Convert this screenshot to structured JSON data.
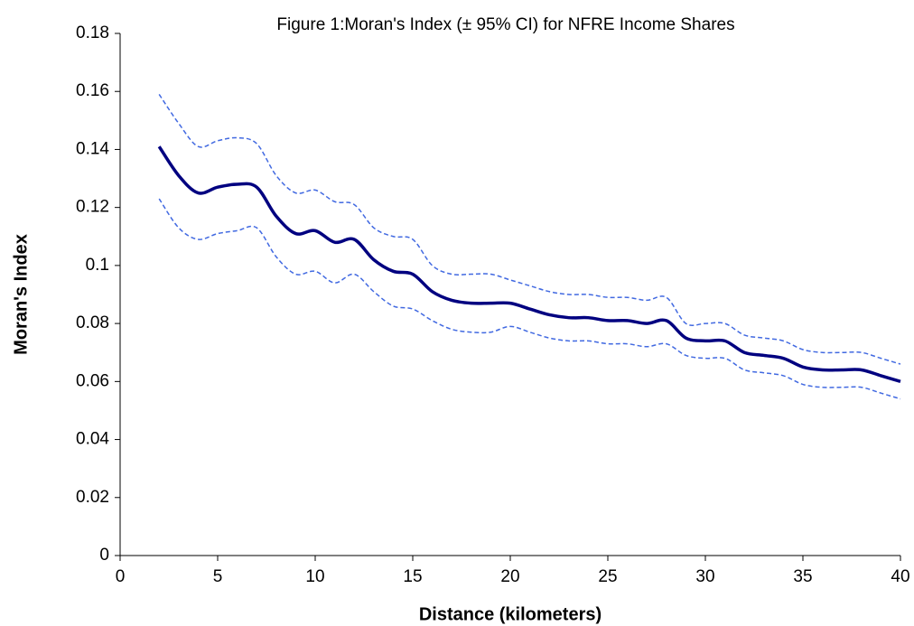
{
  "chart_data": {
    "type": "line",
    "title": "Figure 1:Moran's Index (± 95% CI) for NFRE Income Shares",
    "x_label": "Distance (kilometers)",
    "y_label": "Moran's Index",
    "x": [
      2,
      3,
      4,
      5,
      6,
      7,
      8,
      9,
      10,
      11,
      12,
      13,
      14,
      15,
      16,
      17,
      18,
      19,
      20,
      21,
      22,
      23,
      24,
      25,
      26,
      27,
      28,
      29,
      30,
      31,
      32,
      33,
      34,
      35,
      36,
      37,
      38,
      39,
      40
    ],
    "series": [
      {
        "color": "#000080",
        "dash": false,
        "width": 3.5,
        "values": [
          0.141,
          0.131,
          0.125,
          0.127,
          0.128,
          0.127,
          0.117,
          0.111,
          0.112,
          0.108,
          0.109,
          0.102,
          0.098,
          0.097,
          0.091,
          0.088,
          0.087,
          0.087,
          0.087,
          0.085,
          0.083,
          0.082,
          0.082,
          0.081,
          0.081,
          0.08,
          0.081,
          0.075,
          0.074,
          0.074,
          0.07,
          0.069,
          0.068,
          0.065,
          0.064,
          0.064,
          0.064,
          0.062,
          0.06
        ]
      },
      {
        "color": "#4169e1",
        "dash": true,
        "width": 1.5,
        "values": [
          0.159,
          0.149,
          0.141,
          0.143,
          0.144,
          0.142,
          0.131,
          0.125,
          0.126,
          0.122,
          0.121,
          0.113,
          0.11,
          0.109,
          0.1,
          0.097,
          0.097,
          0.097,
          0.095,
          0.093,
          0.091,
          0.09,
          0.09,
          0.089,
          0.089,
          0.088,
          0.089,
          0.08,
          0.08,
          0.08,
          0.076,
          0.075,
          0.074,
          0.071,
          0.07,
          0.07,
          0.07,
          0.068,
          0.066
        ]
      },
      {
        "color": "#4169e1",
        "dash": true,
        "width": 1.5,
        "values": [
          0.123,
          0.113,
          0.109,
          0.111,
          0.112,
          0.113,
          0.103,
          0.097,
          0.098,
          0.094,
          0.097,
          0.091,
          0.086,
          0.085,
          0.081,
          0.078,
          0.077,
          0.077,
          0.079,
          0.077,
          0.075,
          0.074,
          0.074,
          0.073,
          0.073,
          0.072,
          0.073,
          0.069,
          0.068,
          0.068,
          0.064,
          0.063,
          0.062,
          0.059,
          0.058,
          0.058,
          0.058,
          0.056,
          0.054
        ]
      }
    ],
    "xlim": [
      0,
      40
    ],
    "xticks": [
      0,
      5,
      10,
      15,
      20,
      25,
      30,
      35,
      40
    ],
    "ylim": [
      0,
      0.18
    ],
    "yticks": [
      0,
      0.02,
      0.04,
      0.06,
      0.08,
      0.1,
      0.12,
      0.14,
      0.16,
      0.18
    ],
    "grid": false
  }
}
